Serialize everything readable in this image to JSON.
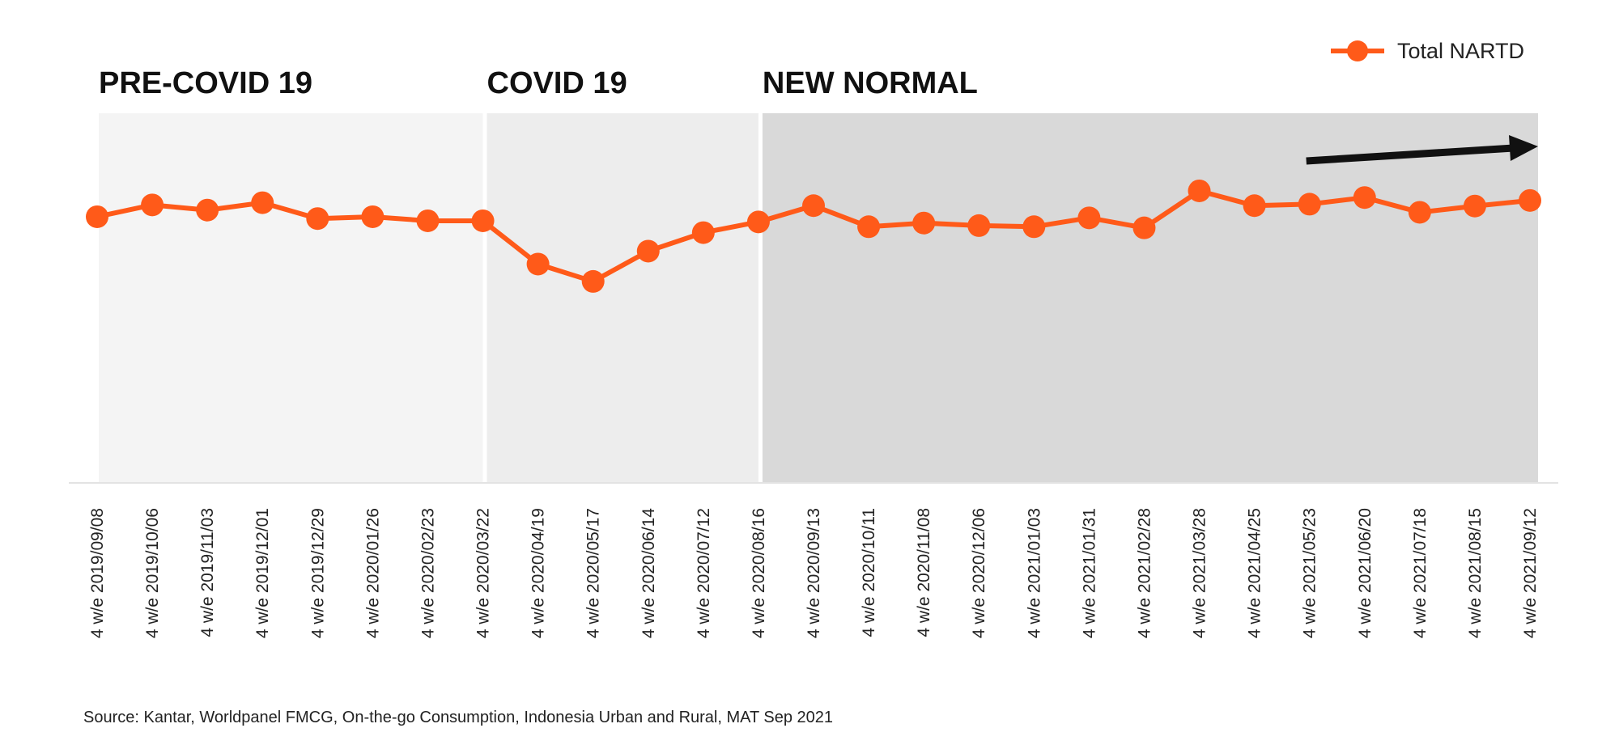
{
  "chart_data": {
    "type": "line",
    "title": "",
    "xlabel": "",
    "ylabel": "",
    "categories": [
      "4 w/e 2019/09/08",
      "4 w/e 2019/10/06",
      "4 w/e 2019/11/03",
      "4 w/e 2019/12/01",
      "4 w/e 2019/12/29",
      "4 w/e 2020/01/26",
      "4 w/e 2020/02/23",
      "4 w/e 2020/03/22",
      "4 w/e 2020/04/19",
      "4 w/e 2020/05/17",
      "4 w/e 2020/06/14",
      "4 w/e 2020/07/12",
      "4 w/e 2020/08/16",
      "4 w/e 2020/09/13",
      "4 w/e 2020/10/11",
      "4 w/e 2020/11/08",
      "4 w/e 2020/12/06",
      "4 w/e 2021/01/03",
      "4 w/e 2021/01/31",
      "4 w/e 2021/02/28",
      "4 w/e 2021/03/28",
      "4 w/e 2021/04/25",
      "4 w/e 2021/05/23",
      "4 w/e 2021/06/20",
      "4 w/e 2021/07/18",
      "4 w/e 2021/08/15",
      "4 w/e 2021/09/12"
    ],
    "series": [
      {
        "name": "Total NARTD",
        "color": "#FF5A19",
        "values": [
          72.0,
          75.2,
          73.8,
          75.8,
          71.5,
          72.0,
          70.9,
          70.9,
          59.2,
          54.5,
          62.7,
          67.7,
          70.6,
          75.0,
          69.3,
          70.3,
          69.6,
          69.3,
          71.7,
          69.0,
          79.0,
          75.0,
          75.4,
          77.2,
          73.2,
          74.9,
          76.4
        ]
      }
    ],
    "ylim": [
      0,
      100
    ],
    "y_axis_visible": false,
    "grid": false,
    "legend": {
      "position": "top-right",
      "entries": [
        "Total NARTD"
      ]
    },
    "phases": [
      {
        "label": "PRE-COVID 19",
        "start_index": 0,
        "end_index": 7,
        "color": "#F4F4F4"
      },
      {
        "label": "COVID 19",
        "start_index": 7,
        "end_index": 12,
        "color": "#EDEDED"
      },
      {
        "label": "NEW NORMAL",
        "start_index": 12,
        "end_index": 26,
        "color": "#D9D9D9"
      }
    ],
    "annotations": [
      {
        "type": "trend-arrow",
        "direction": "upward",
        "color": "#111111",
        "start_index": 22,
        "end_index": 26
      }
    ]
  },
  "source_text": "Source: Kantar, Worldpanel FMCG, On-the-go Consumption, Indonesia Urban and Rural, MAT Sep 2021"
}
